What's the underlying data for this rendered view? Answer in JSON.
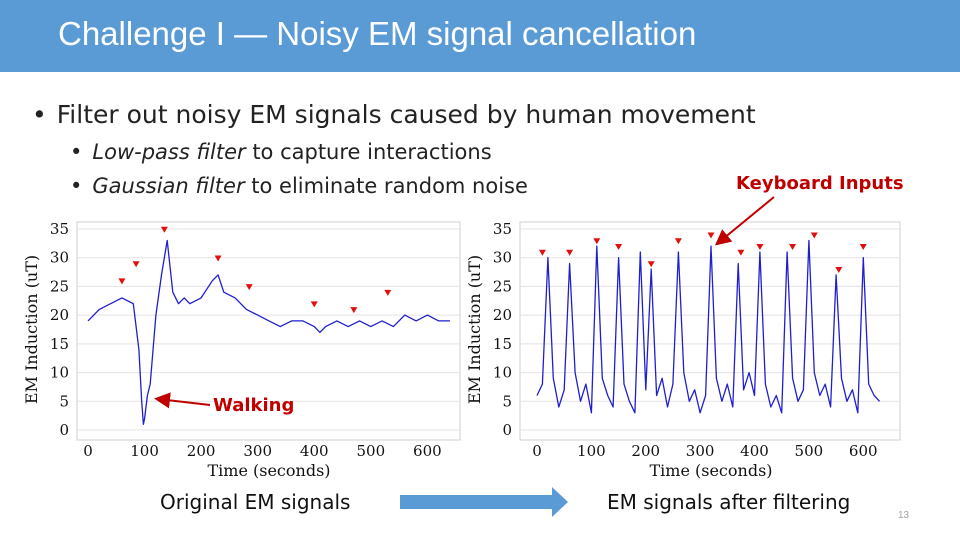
{
  "title": "Challenge I — Noisy EM signal cancellation",
  "bullets": {
    "main": "Filter out noisy EM signals caused by human movement",
    "sub1_italic": "Low-pass filter",
    "sub1_rest": " to capture interactions",
    "sub2_italic": "Gaussian filter",
    "sub2_rest": " to eliminate random noise"
  },
  "annotations": {
    "keyboard": "Keyboard Inputs",
    "walking": "Walking"
  },
  "captions": {
    "left": "Original EM signals",
    "right": "EM signals after filtering"
  },
  "page_number": "13",
  "colors": {
    "title_bar": "#5b9bd5",
    "signal": "#1f1fd0",
    "peak_marker": "#e01010",
    "annotation": "#c00000",
    "arrow": "#5b9bd5"
  },
  "chart_data": [
    {
      "type": "line",
      "xlabel": "Time (seconds)",
      "ylabel": "EM Induction (uT)",
      "xlim": [
        0,
        640
      ],
      "ylim": [
        0,
        35
      ],
      "xticks": [
        "0",
        "100",
        "200",
        "300",
        "400",
        "500",
        "600"
      ],
      "yticks": [
        "0",
        "5",
        "10",
        "15",
        "20",
        "25",
        "30",
        "35"
      ],
      "series": [
        {
          "x": [
            0,
            20,
            40,
            60,
            80,
            90,
            95,
            98,
            100,
            105,
            110,
            120,
            130,
            140,
            150,
            160,
            170,
            180,
            200,
            220,
            230,
            240,
            260,
            280,
            300,
            320,
            340,
            360,
            380,
            400,
            410,
            420,
            440,
            460,
            480,
            500,
            520,
            540,
            560,
            580,
            600,
            620,
            640
          ],
          "values": [
            19,
            21,
            22,
            23,
            22,
            14,
            5,
            1,
            2,
            6,
            8,
            20,
            27,
            33,
            24,
            22,
            23,
            22,
            23,
            26,
            27,
            24,
            23,
            21,
            20,
            19,
            18,
            19,
            19,
            18,
            17,
            18,
            19,
            18,
            19,
            18,
            19,
            18,
            20,
            19,
            20,
            19,
            19
          ]
        }
      ],
      "markers": [
        {
          "x": 60,
          "y": 25
        },
        {
          "x": 85,
          "y": 28
        },
        {
          "x": 135,
          "y": 34
        },
        {
          "x": 230,
          "y": 29
        },
        {
          "x": 285,
          "y": 24
        },
        {
          "x": 400,
          "y": 21
        },
        {
          "x": 470,
          "y": 20
        },
        {
          "x": 530,
          "y": 23
        }
      ]
    },
    {
      "type": "line",
      "xlabel": "Time (seconds)",
      "ylabel": "EM Induction (uT)",
      "xlim": [
        0,
        640
      ],
      "ylim": [
        0,
        35
      ],
      "xticks": [
        "0",
        "100",
        "200",
        "300",
        "400",
        "500",
        "600"
      ],
      "yticks": [
        "0",
        "5",
        "10",
        "15",
        "20",
        "25",
        "30",
        "35"
      ],
      "series": [
        {
          "x": [
            0,
            10,
            20,
            30,
            40,
            50,
            60,
            70,
            80,
            90,
            100,
            110,
            120,
            130,
            140,
            150,
            160,
            170,
            180,
            190,
            200,
            210,
            220,
            230,
            240,
            250,
            260,
            270,
            280,
            290,
            300,
            310,
            320,
            330,
            340,
            350,
            360,
            370,
            380,
            390,
            400,
            410,
            420,
            430,
            440,
            450,
            460,
            470,
            480,
            490,
            500,
            510,
            520,
            530,
            540,
            550,
            560,
            570,
            580,
            590,
            600,
            610,
            620,
            630
          ],
          "values": [
            6,
            8,
            30,
            9,
            4,
            7,
            29,
            10,
            5,
            8,
            3,
            32,
            9,
            6,
            4,
            30,
            8,
            5,
            3,
            31,
            7,
            28,
            6,
            9,
            4,
            8,
            31,
            10,
            5,
            7,
            3,
            6,
            32,
            9,
            5,
            8,
            4,
            29,
            7,
            10,
            6,
            31,
            8,
            4,
            6,
            3,
            31,
            9,
            5,
            7,
            33,
            10,
            6,
            8,
            4,
            27,
            9,
            5,
            7,
            3,
            30,
            8,
            6,
            5
          ]
        }
      ],
      "markers": [
        {
          "x": 10,
          "y": 30
        },
        {
          "x": 60,
          "y": 30
        },
        {
          "x": 110,
          "y": 32
        },
        {
          "x": 150,
          "y": 31
        },
        {
          "x": 210,
          "y": 28
        },
        {
          "x": 260,
          "y": 32
        },
        {
          "x": 320,
          "y": 33
        },
        {
          "x": 375,
          "y": 30
        },
        {
          "x": 410,
          "y": 31
        },
        {
          "x": 470,
          "y": 31
        },
        {
          "x": 510,
          "y": 33
        },
        {
          "x": 555,
          "y": 27
        },
        {
          "x": 600,
          "y": 31
        }
      ]
    }
  ]
}
